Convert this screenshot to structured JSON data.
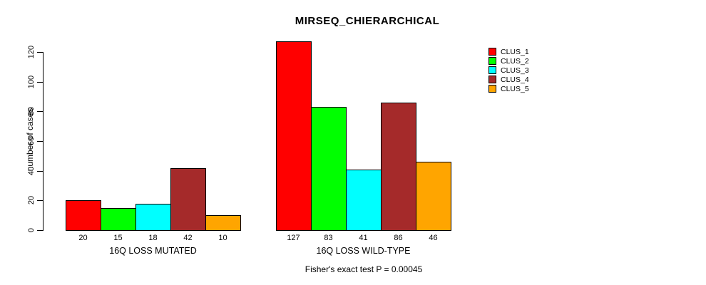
{
  "title": "MIRSEQ_CHIERARCHICAL",
  "subtitle": "Fisher's exact test P = 0.00045",
  "chart_data": {
    "type": "bar",
    "title": "MIRSEQ_CHIERARCHICAL",
    "xlabel": "",
    "ylabel": "number of cases",
    "ylim": [
      0,
      130
    ],
    "yticks": [
      0,
      20,
      40,
      60,
      80,
      100,
      120
    ],
    "grid": false,
    "legend_position": "top-right",
    "groups": [
      {
        "label": "16Q LOSS MUTATED",
        "values": [
          20,
          15,
          18,
          42,
          10
        ],
        "value_labels": [
          "20",
          "15",
          "18",
          "42",
          "10"
        ]
      },
      {
        "label": "16Q LOSS WILD-TYPE",
        "values": [
          127,
          83,
          41,
          86,
          46
        ],
        "value_labels": [
          "127",
          "83",
          "41",
          "86",
          "46"
        ]
      }
    ],
    "series": [
      {
        "name": "CLUS_1",
        "color": "#FF0000"
      },
      {
        "name": "CLUS_2",
        "color": "#00FF00"
      },
      {
        "name": "CLUS_3",
        "color": "#00FFFF"
      },
      {
        "name": "CLUS_4",
        "color": "#A52A2A"
      },
      {
        "name": "CLUS_5",
        "color": "#FFA500"
      }
    ],
    "annotation": "Fisher's exact test P = 0.00045",
    "axis_color": "#000000",
    "bar_border_color": "#000000",
    "background_color": "#FFFFFF"
  }
}
